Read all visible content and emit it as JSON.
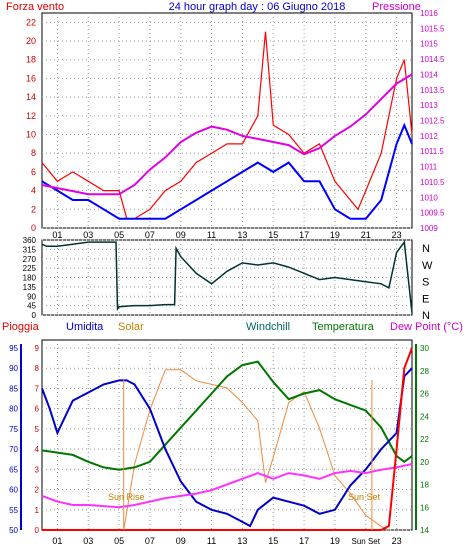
{
  "panels": {
    "top": {
      "title": "24 hour graph day : 06 Giugno 2018",
      "left_label": "Forza vento",
      "right_label": "Pressione",
      "left_ticks": [
        "0",
        "2",
        "4",
        "6",
        "8",
        "10",
        "12",
        "14",
        "16",
        "18",
        "20",
        "22"
      ],
      "right_ticks": [
        "1009",
        "1009.5",
        "1010",
        "1010.5",
        "1011",
        "1011.5",
        "1012",
        "1012.5",
        "1013",
        "1013.5",
        "1014",
        "1014.5",
        "1015",
        "1015.5",
        "1016"
      ]
    },
    "middle": {
      "left_ticks": [
        "0",
        "45",
        "90",
        "135",
        "180",
        "225",
        "270",
        "315",
        "360"
      ],
      "right_labels": [
        "N",
        "W",
        "S",
        "E",
        "N"
      ]
    },
    "bottom": {
      "labels": {
        "pioggia": "Pioggia",
        "umidita": "Umidita",
        "solar": "Solar",
        "windchill": "Windchill",
        "temperatura": "Temperatura",
        "dewpoint": "Dew Point (°C)"
      },
      "left_ticks_rain": [
        "0",
        "1",
        "2",
        "3",
        "4",
        "5",
        "6",
        "7",
        "8",
        "9"
      ],
      "left_ticks_hum": [
        "50",
        "55",
        "60",
        "65",
        "70",
        "75",
        "80",
        "85",
        "90",
        "95"
      ],
      "right_ticks": [
        "14",
        "16",
        "18",
        "20",
        "22",
        "24",
        "26",
        "28",
        "30"
      ],
      "annotations": {
        "sunrise": "Sun Rise",
        "sunset": "Sun Set",
        "sunset_axis": "Sun Set"
      }
    }
  },
  "x_ticks": [
    "01",
    "03",
    "05",
    "07",
    "09",
    "11",
    "13",
    "15",
    "17",
    "19",
    "21",
    "23"
  ],
  "colors": {
    "frame": "#000000",
    "grid": "#999999",
    "wind_gust": "#ff0000",
    "wind_avg": "#0000ff",
    "pressure": "#e000e0",
    "direction": "#003333",
    "humidity": "#0000cc",
    "solar": "#f08a3c",
    "temperature": "#007700",
    "dewpoint": "#ff33ff",
    "rain": "#ff0000",
    "title": "#0000cc",
    "label_red": "#e00000",
    "label_magenta": "#cc00cc",
    "label_orange": "#c08000",
    "label_teal": "#006666",
    "label_green": "#007700",
    "tick_left": "#cc0000",
    "tick_right_top": "#cc00cc",
    "tick_hum": "#0000cc",
    "tick_right_bottom": "#007700"
  },
  "chart_data": [
    {
      "type": "line",
      "title": "24 hour graph day : 06 Giugno 2018",
      "x_unit": "hour",
      "y_left": {
        "label": "Forza vento",
        "ylim": [
          0,
          23
        ]
      },
      "y_right": {
        "label": "Pressione",
        "ylim": [
          1009,
          1016
        ]
      },
      "series": [
        {
          "name": "Forza vento",
          "axis": "left",
          "style": "gust",
          "x": [
            0,
            1,
            2,
            3,
            4,
            5,
            5.5,
            6,
            7,
            8,
            9,
            10,
            11,
            12,
            13,
            14,
            14.5,
            15,
            16,
            17,
            18,
            19,
            20,
            20.5,
            21,
            22,
            23,
            23.5,
            24
          ],
          "y": [
            7,
            5,
            6,
            5,
            4,
            4,
            1,
            1,
            2,
            4,
            5,
            7,
            8,
            9,
            9,
            12,
            21,
            11,
            10,
            8,
            9,
            5,
            3,
            2,
            4,
            8,
            16,
            18,
            10
          ]
        },
        {
          "name": "",
          "axis": "left",
          "style": "avg",
          "x": [
            0,
            1,
            2,
            3,
            4,
            5,
            6,
            7,
            8,
            9,
            10,
            11,
            12,
            13,
            14,
            15,
            16,
            17,
            18,
            19,
            20,
            21,
            22,
            23,
            23.5,
            24
          ],
          "y": [
            5,
            4,
            3,
            3,
            2,
            1,
            1,
            1,
            1,
            2,
            3,
            4,
            5,
            6,
            7,
            6,
            7,
            5,
            5,
            2,
            1,
            1,
            3,
            9,
            11,
            9
          ]
        },
        {
          "name": "Pressione",
          "axis": "right",
          "x": [
            0,
            1,
            2,
            3,
            4,
            5,
            6,
            7,
            8,
            9,
            10,
            11,
            12,
            13,
            14,
            15,
            16,
            17,
            18,
            19,
            20,
            21,
            22,
            23,
            24
          ],
          "y": [
            1010.4,
            1010.3,
            1010.2,
            1010.1,
            1010.1,
            1010.1,
            1010.4,
            1010.9,
            1011.3,
            1011.8,
            1012.1,
            1012.3,
            1012.2,
            1012.0,
            1011.9,
            1011.8,
            1011.7,
            1011.4,
            1011.6,
            1012.0,
            1012.3,
            1012.7,
            1013.2,
            1013.7,
            1014.0
          ]
        }
      ]
    },
    {
      "type": "line",
      "title": "",
      "y_left": {
        "ylim": [
          0,
          360
        ]
      },
      "series": [
        {
          "name": "",
          "x": [
            0,
            0.3,
            1,
            2,
            3,
            4,
            4.8,
            4.9,
            5,
            6,
            7,
            8,
            8.6,
            8.7,
            9,
            10,
            11,
            12,
            13,
            14,
            15,
            16,
            17,
            18,
            19,
            20,
            21,
            22,
            22.5,
            23,
            23.5,
            24
          ],
          "y": [
            340,
            330,
            330,
            340,
            350,
            350,
            350,
            30,
            40,
            45,
            45,
            50,
            50,
            320,
            280,
            200,
            150,
            210,
            250,
            240,
            250,
            230,
            200,
            170,
            180,
            170,
            160,
            150,
            130,
            300,
            350,
            10
          ]
        }
      ]
    },
    {
      "type": "line",
      "title": "",
      "y_left_rain": {
        "label": "Pioggia",
        "ylim": [
          0,
          9
        ]
      },
      "y_left_hum": {
        "label": "Umidita",
        "ylim": [
          50,
          95
        ]
      },
      "y_right": {
        "label": "Dew Point (°C)",
        "ylim": [
          14,
          30
        ]
      },
      "series": [
        {
          "name": "Umidita",
          "axis": "hum",
          "x": [
            0,
            0.5,
            1,
            2,
            3,
            4,
            5,
            5.5,
            6,
            7,
            8,
            9,
            10,
            11,
            12,
            13,
            13.5,
            14,
            15,
            16,
            17,
            18,
            19,
            20,
            21,
            22,
            23,
            23.5,
            24
          ],
          "y": [
            85,
            80,
            74,
            82,
            84,
            86,
            87,
            87,
            86,
            80,
            70,
            62,
            57,
            55,
            54,
            52,
            51,
            55,
            58,
            57,
            56,
            54,
            55,
            61,
            65,
            70,
            74,
            88,
            90
          ]
        },
        {
          "name": "Temperatura",
          "axis": "right",
          "x": [
            0,
            1,
            2,
            3,
            4,
            5,
            6,
            7,
            8,
            9,
            10,
            11,
            12,
            13,
            14,
            15,
            16,
            17,
            18,
            19,
            20,
            21,
            22,
            23,
            23.5,
            24
          ],
          "y": [
            21,
            20.8,
            20.6,
            20,
            19.5,
            19.3,
            19.5,
            20,
            21.5,
            23,
            24.5,
            26,
            27.5,
            28.5,
            28.8,
            27,
            25.5,
            26,
            26.3,
            25.5,
            25,
            24.5,
            23,
            20.5,
            20,
            20.5
          ]
        },
        {
          "name": "Dew Point (°C)",
          "axis": "right",
          "x": [
            0,
            1,
            2,
            3,
            4,
            5,
            6,
            7,
            8,
            9,
            10,
            11,
            12,
            13,
            14,
            15,
            16,
            17,
            18,
            19,
            20,
            21,
            22,
            23,
            24
          ],
          "y": [
            17,
            16.5,
            16.2,
            16.2,
            16.1,
            16.0,
            16.2,
            16.5,
            16.8,
            17.0,
            17.2,
            17.5,
            18.0,
            18.5,
            19.0,
            18.5,
            19.0,
            18.8,
            18.5,
            19.0,
            19.2,
            19.0,
            19.3,
            19.5,
            19.8
          ]
        },
        {
          "name": "Solar",
          "axis": "none",
          "x": [
            5.3,
            5.5,
            6,
            7,
            8,
            9,
            10,
            11,
            12,
            13,
            14,
            14.5,
            15,
            16,
            17,
            18,
            19,
            20,
            21,
            22,
            22.5
          ],
          "y": [
            0,
            50,
            180,
            330,
            440,
            440,
            410,
            400,
            390,
            350,
            300,
            130,
            200,
            350,
            380,
            280,
            150,
            100,
            40,
            10,
            0
          ]
        },
        {
          "name": "Pioggia",
          "axis": "rain",
          "x": [
            0,
            22,
            22.5,
            23,
            23.5,
            24
          ],
          "y": [
            0,
            0,
            0.2,
            4,
            8,
            9
          ]
        }
      ]
    }
  ]
}
